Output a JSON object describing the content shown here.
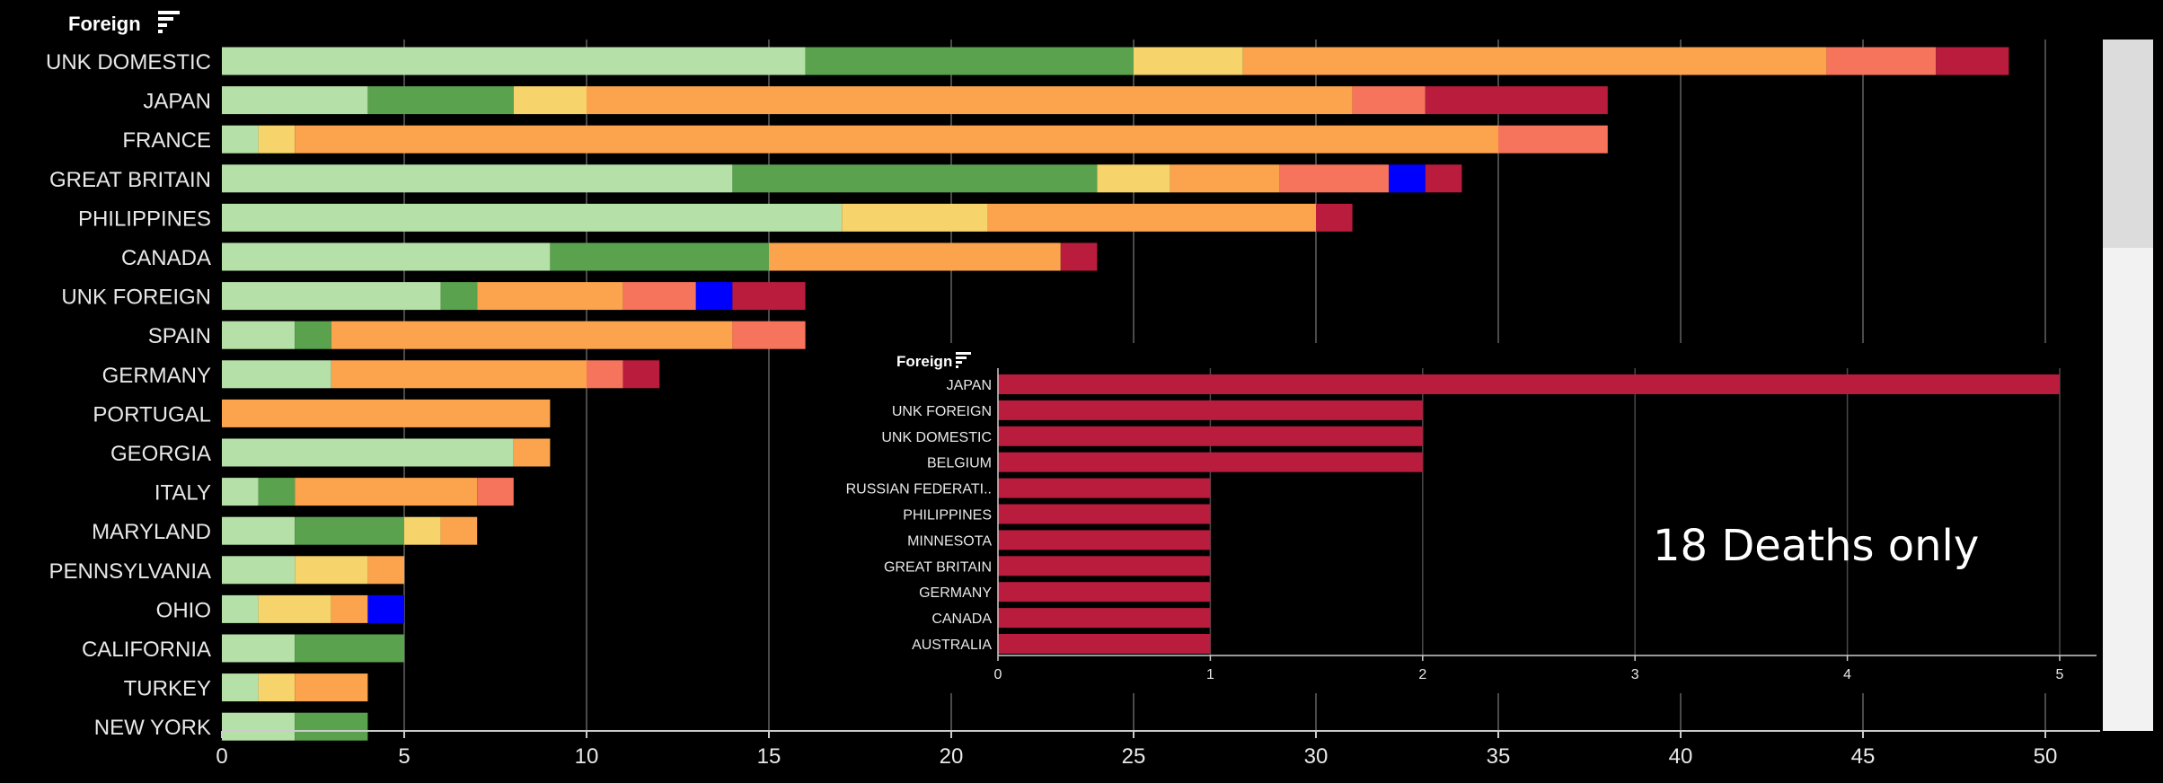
{
  "colors": {
    "light_green": "#b5e0a8",
    "green": "#5aa24e",
    "yellow": "#f6d36b",
    "orange": "#fba34d",
    "salmon": "#f6735c",
    "blue": "#0000ff",
    "crimson": "#b91c3c"
  },
  "chart_data": [
    {
      "type": "bar",
      "orientation": "horizontal",
      "stacked": true,
      "title": "Foreign",
      "xlim": [
        0,
        51
      ],
      "x_ticks": [
        0,
        5,
        10,
        15,
        20,
        25,
        30,
        35,
        40,
        45,
        50
      ],
      "grid": true,
      "categories": [
        "UNK DOMESTIC",
        "JAPAN",
        "FRANCE",
        "GREAT BRITAIN",
        "PHILIPPINES",
        "CANADA",
        "UNK FOREIGN",
        "SPAIN",
        "GERMANY",
        "PORTUGAL",
        "GEORGIA",
        "ITALY",
        "MARYLAND",
        "PENNSYLVANIA",
        "OHIO",
        "CALIFORNIA",
        "TURKEY",
        "NEW YORK"
      ],
      "series": [
        {
          "color": "#b5e0a8",
          "values": [
            16,
            4,
            1,
            14,
            17,
            9,
            6,
            2,
            3,
            0,
            8,
            1,
            2,
            2,
            1,
            2,
            1,
            2
          ]
        },
        {
          "color": "#5aa24e",
          "values": [
            9,
            4,
            0,
            10,
            0,
            6,
            1,
            1,
            0,
            0,
            0,
            1,
            3,
            0,
            0,
            3,
            0,
            2
          ]
        },
        {
          "color": "#f6d36b",
          "values": [
            3,
            2,
            1,
            2,
            4,
            0,
            0,
            0,
            0,
            0,
            0,
            0,
            1,
            2,
            2,
            0,
            1,
            0
          ]
        },
        {
          "color": "#fba34d",
          "values": [
            16,
            21,
            33,
            3,
            9,
            8,
            4,
            11,
            7,
            9,
            1,
            5,
            1,
            1,
            1,
            0,
            2,
            0
          ]
        },
        {
          "color": "#f6735c",
          "values": [
            3,
            2,
            3,
            3,
            0,
            0,
            2,
            2,
            1,
            0,
            0,
            1,
            0,
            0,
            0,
            0,
            0,
            0
          ]
        },
        {
          "color": "#0000ff",
          "values": [
            0,
            0,
            0,
            1,
            0,
            0,
            1,
            0,
            0,
            0,
            0,
            0,
            0,
            0,
            1,
            0,
            0,
            0
          ]
        },
        {
          "color": "#b91c3c",
          "values": [
            2,
            5,
            0,
            1,
            1,
            1,
            2,
            0,
            1,
            0,
            0,
            0,
            0,
            0,
            0,
            0,
            0,
            0
          ]
        }
      ]
    },
    {
      "type": "bar",
      "orientation": "horizontal",
      "title": "Foreign",
      "xlim": [
        0,
        5.2
      ],
      "x_ticks": [
        0,
        1,
        2,
        3,
        4,
        5
      ],
      "grid": true,
      "categories": [
        "JAPAN",
        "UNK FOREIGN",
        "UNK DOMESTIC",
        "BELGIUM",
        "RUSSIAN FEDERATI..",
        "PHILIPPINES",
        "MINNESOTA",
        "GREAT BRITAIN",
        "GERMANY",
        "CANADA",
        "AUSTRALIA"
      ],
      "values": [
        5,
        2,
        2,
        2,
        1,
        1,
        1,
        1,
        1,
        1,
        1
      ],
      "color": "#b91c3c"
    }
  ],
  "annotation": "18 Deaths only"
}
